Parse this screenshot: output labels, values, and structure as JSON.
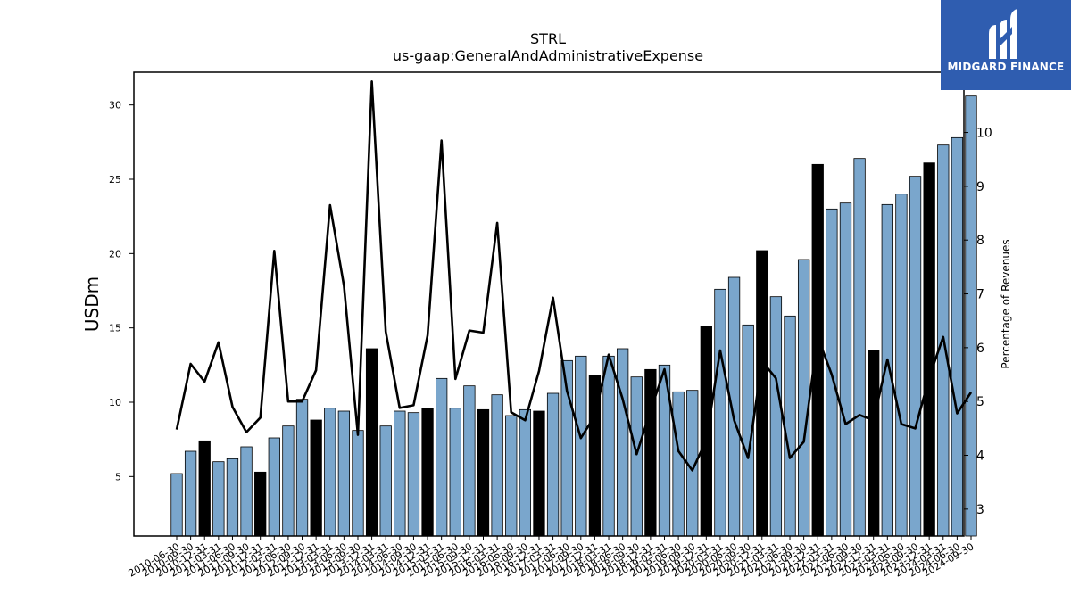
{
  "logo": {
    "text": "MIDGARD FINANCE",
    "icon": "midgard-m-icon"
  },
  "colors": {
    "bar": "#7aa6cc",
    "bar_highlight": "#000000",
    "line": "#000000",
    "axis": "#000000",
    "logo_bg": "#2f5db0"
  },
  "chart_data": {
    "type": "bar",
    "title": "STRL",
    "subtitle": "us-gaap:GeneralAndAdministrativeExpense",
    "ylabel": "USDm",
    "ylabel_right": "Percentage of Revenues",
    "ylim": [
      1,
      32.2
    ],
    "ylim_right": [
      2.5,
      11.12
    ],
    "yticks": [
      5,
      10,
      15,
      20,
      25,
      30
    ],
    "yticks_right": [
      3,
      4,
      5,
      6,
      7,
      8,
      9,
      10
    ],
    "categories": [
      "2010-06-30",
      "2010-09-30",
      "2010-12-31",
      "2011-03-31",
      "2011-06-30",
      "2011-09-30",
      "2011-12-31",
      "2012-03-31",
      "2012-06-30",
      "2012-09-30",
      "2012-12-31",
      "2013-03-31",
      "2013-06-30",
      "2013-09-30",
      "2013-12-31",
      "2014-03-31",
      "2014-06-30",
      "2014-09-30",
      "2014-12-31",
      "2015-03-31",
      "2015-06-30",
      "2015-09-30",
      "2015-12-31",
      "2016-03-31",
      "2016-06-30",
      "2016-09-30",
      "2016-12-31",
      "2017-03-31",
      "2017-06-30",
      "2017-09-30",
      "2017-12-31",
      "2018-03-31",
      "2018-06-30",
      "2018-09-30",
      "2018-12-31",
      "2019-03-31",
      "2019-06-30",
      "2019-09-30",
      "2019-12-31",
      "2020-03-31",
      "2020-06-30",
      "2020-09-30",
      "2020-12-31",
      "2021-03-31",
      "2021-06-30",
      "2021-09-30",
      "2021-12-31",
      "2022-03-31",
      "2022-06-30",
      "2022-09-30",
      "2022-12-31",
      "2023-03-31",
      "2023-06-30",
      "2023-09-30",
      "2023-12-31",
      "2024-03-31",
      "2024-06-30",
      "2024-09-30"
    ],
    "xtick_labels": [
      "2010-06-30",
      "2010-09-30",
      "2010-12-31",
      "2011-03-31",
      "2011-06-30",
      "2011-09-30",
      "2011-12-31",
      "2012-03-31",
      "2012-06-30",
      "2012-09-30",
      "2012-12-31",
      "2013-03-31",
      "2013-06-30",
      "2013-09-30",
      "2013-12-31",
      "2014-03-31",
      "2014-06-30",
      "2014-09-30",
      "2014-12-31",
      "2015-03-31",
      "2015-06-30",
      "2015-09-30",
      "2015-12-31",
      "2016-03-31",
      "2016-06-30",
      "2016-09-30",
      "2016-12-31",
      "2017-03-31",
      "2017-06-30",
      "2017-09-30",
      "2017-12-31",
      "2018-03-31",
      "2018-06-30",
      "2018-09-30",
      "2018-12-31",
      "2019-03-31",
      "2019-06-30",
      "2019-09-30",
      "2019-12-31",
      "2020-03-31",
      "2020-06-30",
      "2020-09-30",
      "2020-12-31",
      "2021-03-31",
      "2021-06-30",
      "2021-09-30",
      "2021-12-31",
      "2022-03-31",
      "2022-06-30",
      "2022-09-30",
      "2022-12-31",
      "2023-03-31",
      "2023-06-30",
      "2023-09-30",
      "2023-12-31",
      "2024-03-31",
      "2024-06-30",
      "2024-09-30"
    ],
    "series": [
      {
        "name": "",
        "type": "bar",
        "axis": "left",
        "values": [
          5.2,
          6.7,
          7.4,
          6.0,
          6.2,
          7.0,
          5.3,
          7.6,
          8.4,
          10.2,
          8.8,
          9.6,
          9.4,
          8.1,
          13.6,
          8.4,
          9.4,
          9.3,
          9.6,
          11.6,
          9.6,
          11.1,
          9.5,
          10.5,
          9.1,
          9.5,
          9.4,
          10.6,
          12.8,
          13.1,
          11.8,
          13.1,
          13.6,
          11.7,
          12.2,
          12.5,
          10.7,
          10.8,
          15.1,
          17.6,
          18.4,
          15.2,
          20.2,
          17.1,
          15.8,
          19.6,
          26.0,
          23.0,
          23.4,
          26.4,
          13.5,
          23.3,
          24.0,
          25.2,
          26.1,
          27.3,
          27.8,
          30.6
        ],
        "highlight": [
          false,
          false,
          true,
          false,
          false,
          false,
          true,
          false,
          false,
          false,
          true,
          false,
          false,
          false,
          true,
          false,
          false,
          false,
          true,
          false,
          false,
          false,
          true,
          false,
          false,
          false,
          true,
          false,
          false,
          false,
          true,
          false,
          false,
          false,
          true,
          false,
          false,
          false,
          true,
          false,
          false,
          false,
          true,
          false,
          false,
          false,
          true,
          false,
          false,
          false,
          true,
          false,
          false,
          false,
          true,
          false,
          false,
          false
        ]
      },
      {
        "name": "",
        "type": "line",
        "axis": "right",
        "values": [
          4.48,
          5.7,
          5.37,
          6.1,
          4.9,
          4.43,
          4.7,
          7.8,
          5.0,
          5.0,
          5.58,
          8.65,
          7.15,
          4.38,
          10.95,
          6.3,
          4.88,
          4.93,
          6.23,
          9.85,
          5.42,
          6.32,
          6.28,
          8.32,
          4.8,
          4.65,
          5.57,
          6.93,
          5.2,
          4.32,
          4.73,
          5.87,
          5.05,
          4.02,
          4.83,
          5.6,
          4.08,
          3.72,
          4.28,
          5.95,
          4.65,
          3.95,
          5.75,
          5.43,
          3.95,
          4.25,
          6.2,
          5.5,
          4.58,
          4.75,
          4.65,
          5.78,
          4.58,
          4.5,
          5.45,
          6.2,
          4.78,
          5.17
        ]
      }
    ]
  }
}
